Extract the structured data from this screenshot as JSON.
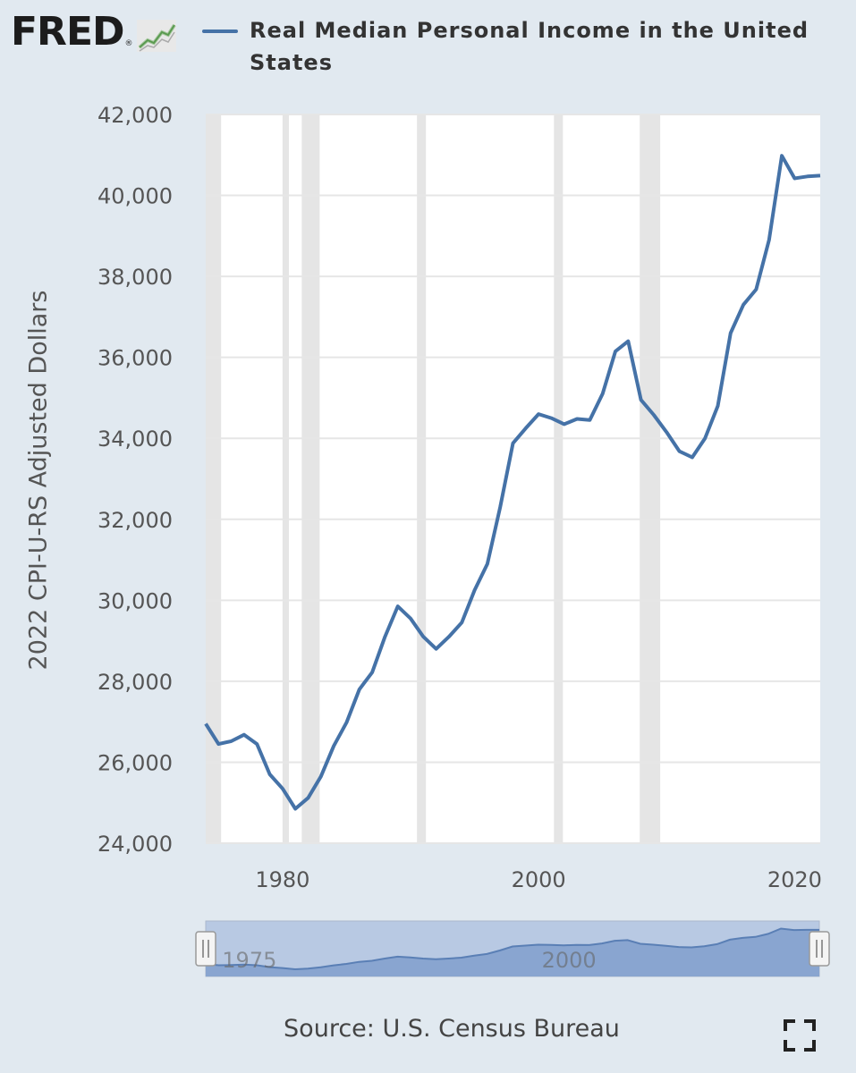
{
  "header": {
    "logo_text": "FRED",
    "logo_reg": "®",
    "logo_icon": "trend-line-icon",
    "legend_label": "Real Median Personal Income in the United States"
  },
  "source_text": "Source: U.S. Census Bureau",
  "fullscreen_icon": "expand-icon",
  "navigator": {
    "labels": [
      "1975",
      "2000"
    ],
    "handle_icon": "grip-icon"
  },
  "colors": {
    "series": "#4572a7",
    "plot_bg": "#ffffff",
    "recession": "#e5e5e5",
    "page_bg": "#e1e9f0",
    "navigator_mask": "#b8c9e3",
    "navigator_series": "#7d9ccb"
  },
  "chart_data": {
    "type": "line",
    "ylabel": "2022 CPI-U-RS Adjusted Dollars",
    "xlabel": "",
    "xlim": [
      1974,
      2022
    ],
    "ylim": [
      24000,
      42000
    ],
    "y_ticks": [
      24000,
      26000,
      28000,
      30000,
      32000,
      34000,
      36000,
      38000,
      40000,
      42000
    ],
    "y_tick_labels": [
      "24,000",
      "26,000",
      "28,000",
      "30,000",
      "32,000",
      "34,000",
      "36,000",
      "38,000",
      "40,000",
      "42,000"
    ],
    "x_ticks": [
      1980,
      2000,
      2020
    ],
    "x_tick_labels": [
      "1980",
      "2000",
      "2020"
    ],
    "grid": true,
    "recession_shading": [
      [
        1973.9,
        1975.2
      ],
      [
        1980.0,
        1980.5
      ],
      [
        1981.5,
        1982.9
      ],
      [
        1990.5,
        1991.2
      ],
      [
        2001.2,
        2001.9
      ],
      [
        2007.9,
        2009.5
      ]
    ],
    "series": [
      {
        "name": "Real Median Personal Income in the United States",
        "x": [
          1974,
          1975,
          1976,
          1977,
          1978,
          1979,
          1980,
          1981,
          1982,
          1983,
          1984,
          1985,
          1986,
          1987,
          1988,
          1989,
          1990,
          1991,
          1992,
          1993,
          1994,
          1995,
          1996,
          1997,
          1998,
          1999,
          2000,
          2001,
          2002,
          2003,
          2004,
          2005,
          2006,
          2007,
          2008,
          2009,
          2010,
          2011,
          2012,
          2013,
          2014,
          2015,
          2016,
          2017,
          2018,
          2019,
          2020,
          2021,
          2022
        ],
        "y": [
          26950,
          26450,
          26520,
          26680,
          26450,
          25700,
          25350,
          24850,
          25120,
          25650,
          26400,
          26980,
          27800,
          28220,
          29100,
          29850,
          29550,
          29100,
          28800,
          29100,
          29450,
          30250,
          30900,
          32300,
          33880,
          34250,
          34600,
          34500,
          34350,
          34480,
          34450,
          35100,
          36150,
          36400,
          34950,
          34580,
          34150,
          33680,
          33530,
          34000,
          34800,
          36600,
          37300,
          37680,
          38900,
          40980,
          40420,
          40470,
          40490
        ]
      }
    ]
  }
}
